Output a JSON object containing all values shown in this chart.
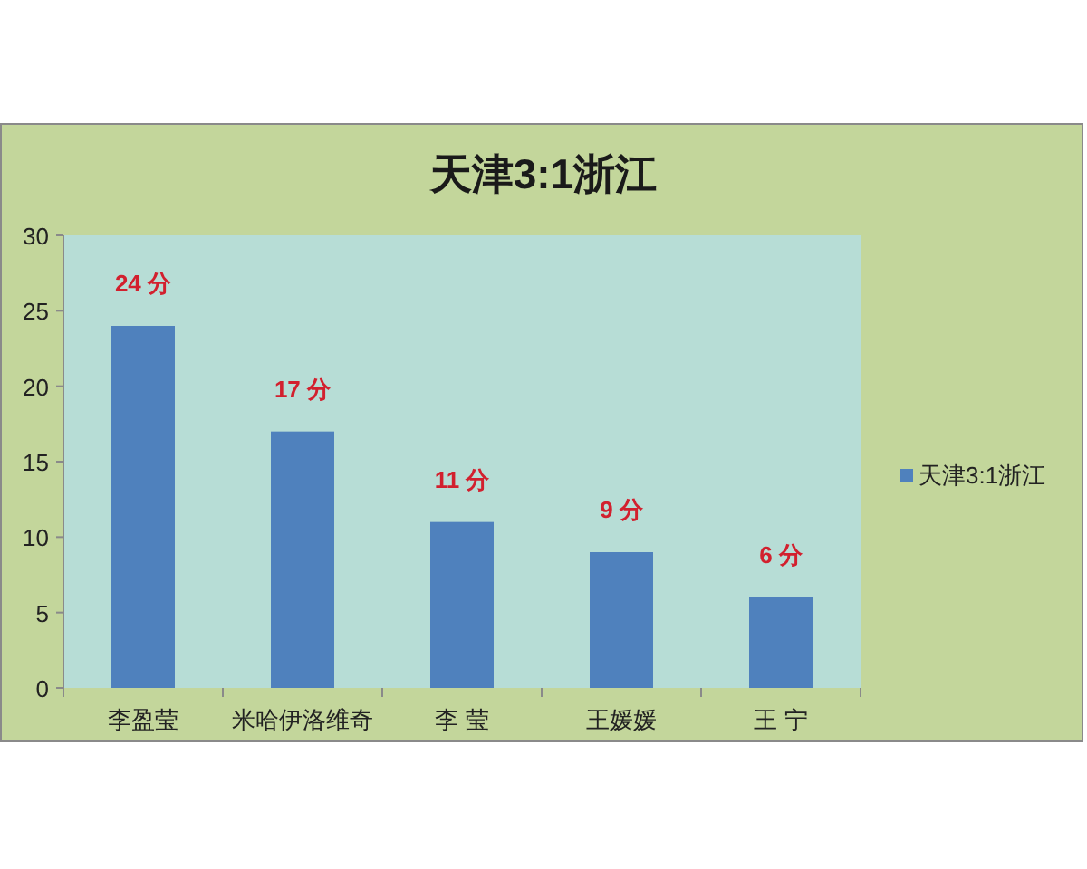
{
  "chart_data": {
    "type": "bar",
    "title": "天津3:1浙江",
    "categories": [
      "李盈莹",
      "米哈伊洛维奇",
      "李 莹",
      "王媛媛",
      "王 宁"
    ],
    "series": [
      {
        "name": "天津3:1浙江",
        "color": "#4f81bd",
        "values": [
          24,
          17,
          11,
          9,
          6
        ],
        "value_labels": [
          "24 分",
          "17 分",
          "11 分",
          "9 分",
          "6 分"
        ]
      }
    ],
    "ylim": [
      0,
      30
    ],
    "yticks": [
      0,
      5,
      10,
      15,
      20,
      25,
      30
    ],
    "legend": "right"
  }
}
